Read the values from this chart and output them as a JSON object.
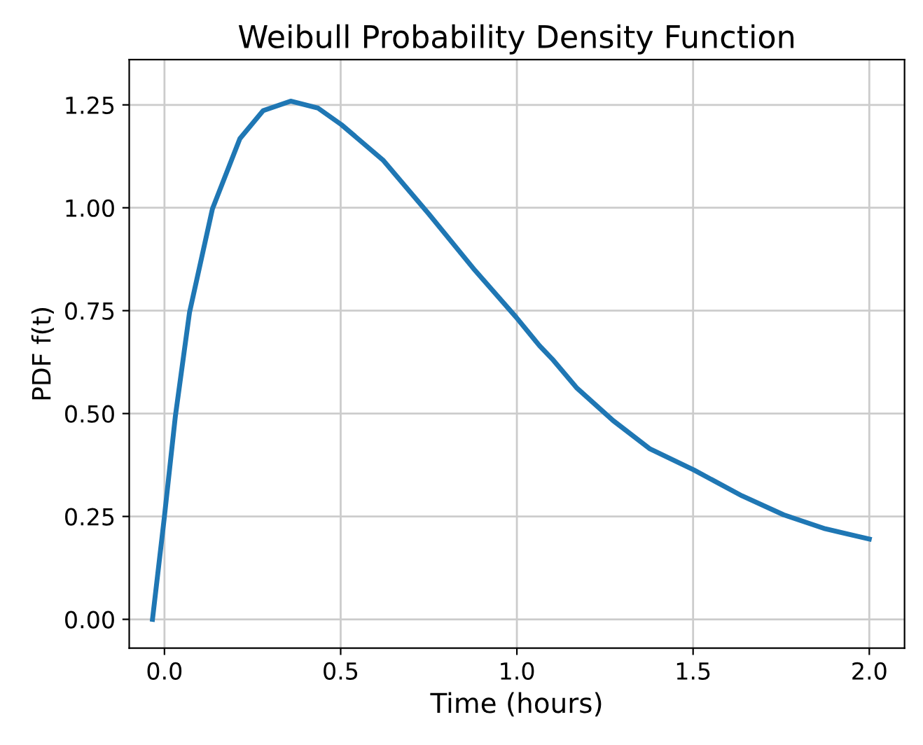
{
  "chart_data": {
    "type": "line",
    "title": "Weibull Probability Density Function",
    "xlabel": "Time (hours)",
    "ylabel": "PDF f(t)",
    "series": [
      {
        "color": "#1f77b4",
        "x": [
          -0.034,
          -0.001,
          0.031,
          0.071,
          0.136,
          0.214,
          0.28,
          0.358,
          0.436,
          0.502,
          0.62,
          0.75,
          0.881,
          0.998,
          1.064,
          1.103,
          1.169,
          1.273,
          1.378,
          1.502,
          1.639,
          1.757,
          1.875,
          2.0
        ],
        "values": [
          0.0,
          0.243,
          0.494,
          0.745,
          0.997,
          1.168,
          1.236,
          1.259,
          1.242,
          1.202,
          1.116,
          0.985,
          0.848,
          0.734,
          0.665,
          0.63,
          0.563,
          0.483,
          0.414,
          0.363,
          0.3,
          0.254,
          0.22,
          0.195
        ]
      }
    ],
    "xlim": [
      -0.1,
      2.1
    ],
    "ylim": [
      -0.07,
      1.36
    ],
    "xticks": [
      {
        "value": 0,
        "label": "0.0"
      },
      0.5,
      {
        "value": 1,
        "label": "1.0"
      },
      1.5,
      {
        "value": 2,
        "label": "2.0"
      }
    ],
    "yticks": [
      {
        "value": 0,
        "label": "0.00"
      },
      0.25,
      {
        "value": 0.5,
        "label": "0.50"
      },
      0.75,
      {
        "value": 1,
        "label": "1.00"
      },
      1.25
    ],
    "grid": true,
    "marker": "none",
    "line_style": "solid"
  }
}
